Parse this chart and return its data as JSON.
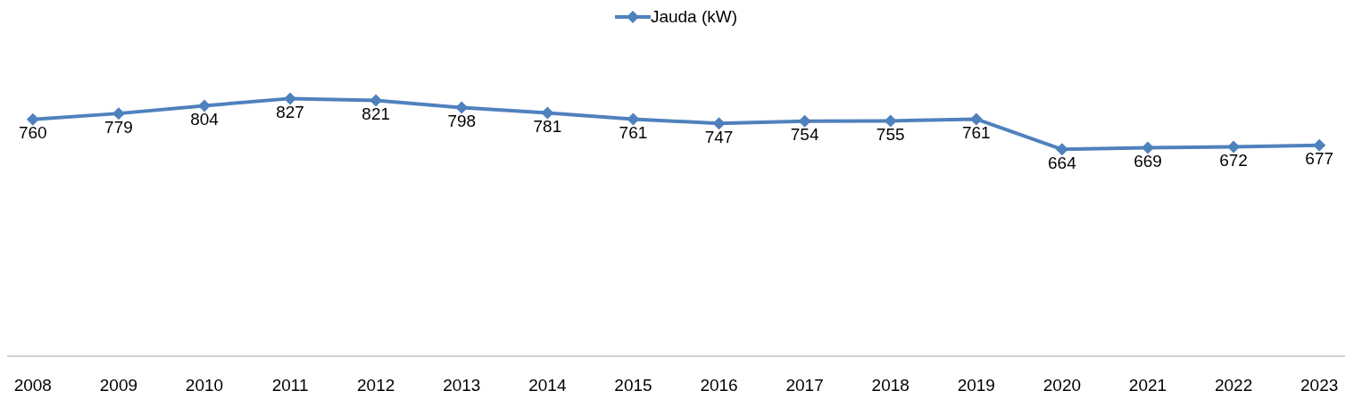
{
  "chart_data": {
    "type": "line",
    "categories": [
      "2008",
      "2009",
      "2010",
      "2011",
      "2012",
      "2013",
      "2014",
      "2015",
      "2016",
      "2017",
      "2018",
      "2019",
      "2020",
      "2021",
      "2022",
      "2023"
    ],
    "series": [
      {
        "name": "Jauda (kW)",
        "color": "#4f81bd",
        "values": [
          760,
          779,
          804,
          827,
          821,
          798,
          781,
          761,
          747,
          754,
          755,
          761,
          664,
          669,
          672,
          677
        ]
      }
    ],
    "data_labels": true,
    "legend": "top",
    "marker": "diamond",
    "grid": false,
    "tick_labels": "x",
    "line_style": "solid"
  }
}
